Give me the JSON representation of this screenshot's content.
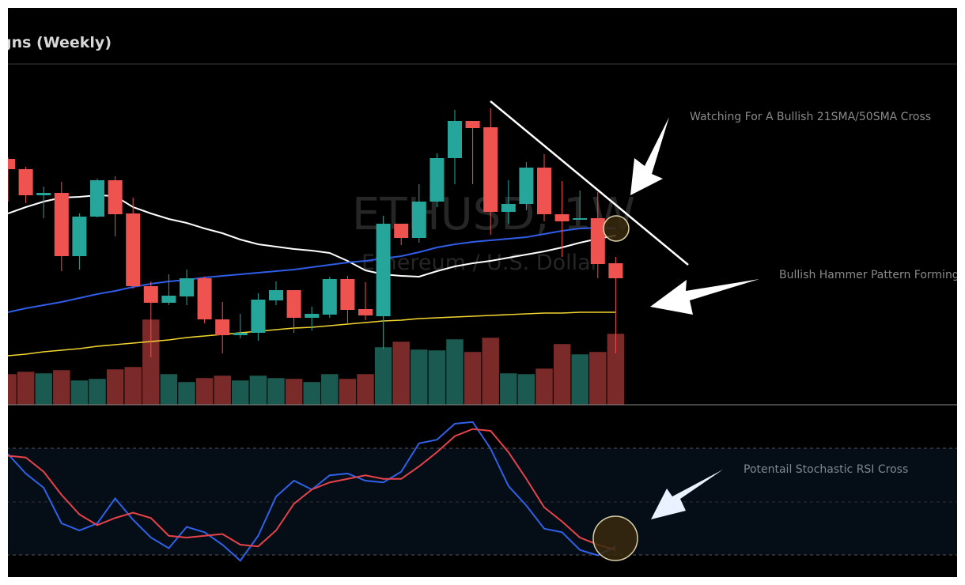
{
  "header": {
    "title": "gns (Weekly)"
  },
  "watermark": {
    "symbol": "ETHUSD, 1W",
    "description": "Ethereum / U.S. Dollar"
  },
  "annotations": {
    "sma_cross": "Watching For A Bullish 21SMA/50SMA Cross",
    "hammer": "Bullish Hammer Pattern Forming",
    "stoch_cross": "Potentail Stochastic RSI Cross"
  },
  "colors": {
    "up": "#26a69a",
    "down": "#ef5350",
    "vol_up": "#1b5a50",
    "vol_down": "#7a2a28",
    "sma_white": "#ffffff",
    "sma_blue": "#2f5de8",
    "sma_yellow": "#f2d630",
    "stoch_k": "#2f62e8",
    "stoch_d": "#e8434a",
    "stoch_band": "#050d16",
    "highlight": "#3a2a0e"
  },
  "chart_data": [
    {
      "type": "candlestick",
      "title": "",
      "interval": "weekly",
      "grid": false,
      "axes_visible": false,
      "ohlc": [
        [
          3677,
          3691,
          3299,
          3586
        ],
        [
          3586,
          3607,
          3285,
          3355
        ],
        [
          3355,
          3432,
          3152,
          3376
        ],
        [
          3376,
          3474,
          2683,
          2816
        ],
        [
          2816,
          3194,
          2697,
          3166
        ],
        [
          3166,
          3502,
          3159,
          3488
        ],
        [
          3488,
          3523,
          2991,
          3187
        ],
        [
          3194,
          3334,
          2529,
          2550
        ],
        [
          2550,
          2592,
          1920,
          2403
        ],
        [
          2403,
          2655,
          2382,
          2466
        ],
        [
          2459,
          2697,
          2382,
          2620
        ],
        [
          2620,
          2634,
          2221,
          2256
        ],
        [
          2256,
          2410,
          1955,
          2116
        ],
        [
          2116,
          2305,
          2088,
          2137
        ],
        [
          2137,
          2487,
          2067,
          2431
        ],
        [
          2424,
          2592,
          2382,
          2515
        ],
        [
          2515,
          2515,
          2137,
          2270
        ],
        [
          2270,
          2368,
          2158,
          2305
        ],
        [
          2298,
          2634,
          2270,
          2613
        ],
        [
          2613,
          2641,
          2214,
          2340
        ],
        [
          2347,
          2585,
          2249,
          2291
        ],
        [
          2284,
          3173,
          1993,
          3103
        ],
        [
          3103,
          3103,
          2914,
          2977
        ],
        [
          2977,
          3453,
          2935,
          3299
        ],
        [
          3299,
          3726,
          3250,
          3684
        ],
        [
          3684,
          4111,
          3453,
          4013
        ],
        [
          4013,
          4013,
          3453,
          3950
        ],
        [
          3957,
          4125,
          3005,
          3208
        ],
        [
          3208,
          3488,
          3103,
          3278
        ],
        [
          3278,
          3649,
          3222,
          3600
        ],
        [
          3600,
          3719,
          3124,
          3187
        ],
        [
          3187,
          3481,
          2809,
          3124
        ],
        [
          3138,
          3397,
          3138,
          3152
        ],
        [
          3152,
          3383,
          2620,
          2746
        ],
        [
          2753,
          2809,
          1955,
          2620
        ]
      ],
      "volume": [
        39,
        42,
        40,
        44,
        31,
        33,
        45,
        48,
        108,
        39,
        29,
        34,
        37,
        31,
        37,
        34,
        33,
        29,
        39,
        33,
        39,
        73,
        80,
        70,
        69,
        83,
        67,
        85,
        40,
        39,
        46,
        77,
        64,
        67,
        90
      ],
      "overlays": [
        {
          "color": "white",
          "values": [
            3194,
            3250,
            3299,
            3334,
            3341,
            3355,
            3348,
            3250,
            3194,
            3145,
            3110,
            3061,
            3019,
            2963,
            2921,
            2900,
            2879,
            2865,
            2844,
            2774,
            2690,
            2655,
            2641,
            2634,
            2683,
            2725,
            2753,
            2774,
            2802,
            2830,
            2858,
            2893,
            2935,
            2970,
            2998
          ]
        },
        {
          "color": "blue",
          "values": [
            2319,
            2354,
            2382,
            2410,
            2445,
            2480,
            2508,
            2543,
            2571,
            2592,
            2606,
            2627,
            2641,
            2655,
            2669,
            2683,
            2697,
            2718,
            2739,
            2760,
            2774,
            2795,
            2816,
            2851,
            2893,
            2921,
            2942,
            2956,
            2970,
            2984,
            3012,
            3040,
            3061,
            3068,
            3061
          ]
        },
        {
          "color": "yellow",
          "values": [
            1934,
            1948,
            1969,
            1983,
            1997,
            2018,
            2032,
            2046,
            2060,
            2074,
            2095,
            2109,
            2123,
            2137,
            2151,
            2165,
            2179,
            2186,
            2200,
            2214,
            2228,
            2242,
            2249,
            2263,
            2270,
            2277,
            2284,
            2291,
            2298,
            2305,
            2312,
            2312,
            2319,
            2319,
            2319
          ]
        }
      ]
    },
    {
      "type": "line",
      "title": "",
      "ylim": [
        0,
        100
      ],
      "bands": [
        20,
        50,
        80
      ],
      "series": [
        {
          "color": "blue",
          "values": [
            77,
            66,
            58,
            38,
            34,
            38,
            52,
            40,
            30,
            24,
            36,
            33,
            26,
            17,
            31,
            53,
            62,
            57,
            65,
            66,
            62,
            61,
            67,
            83,
            85,
            94,
            95,
            80,
            59,
            48,
            35,
            33,
            23,
            20,
            25
          ]
        },
        {
          "color": "red",
          "values": [
            76,
            75,
            67,
            54,
            43,
            37,
            41,
            44,
            41,
            31,
            30,
            31,
            32,
            26,
            25,
            34,
            49,
            57,
            61,
            63,
            65,
            63,
            63,
            70,
            78,
            87,
            91,
            90,
            78,
            63,
            47,
            39,
            30,
            26,
            23
          ]
        }
      ]
    }
  ]
}
